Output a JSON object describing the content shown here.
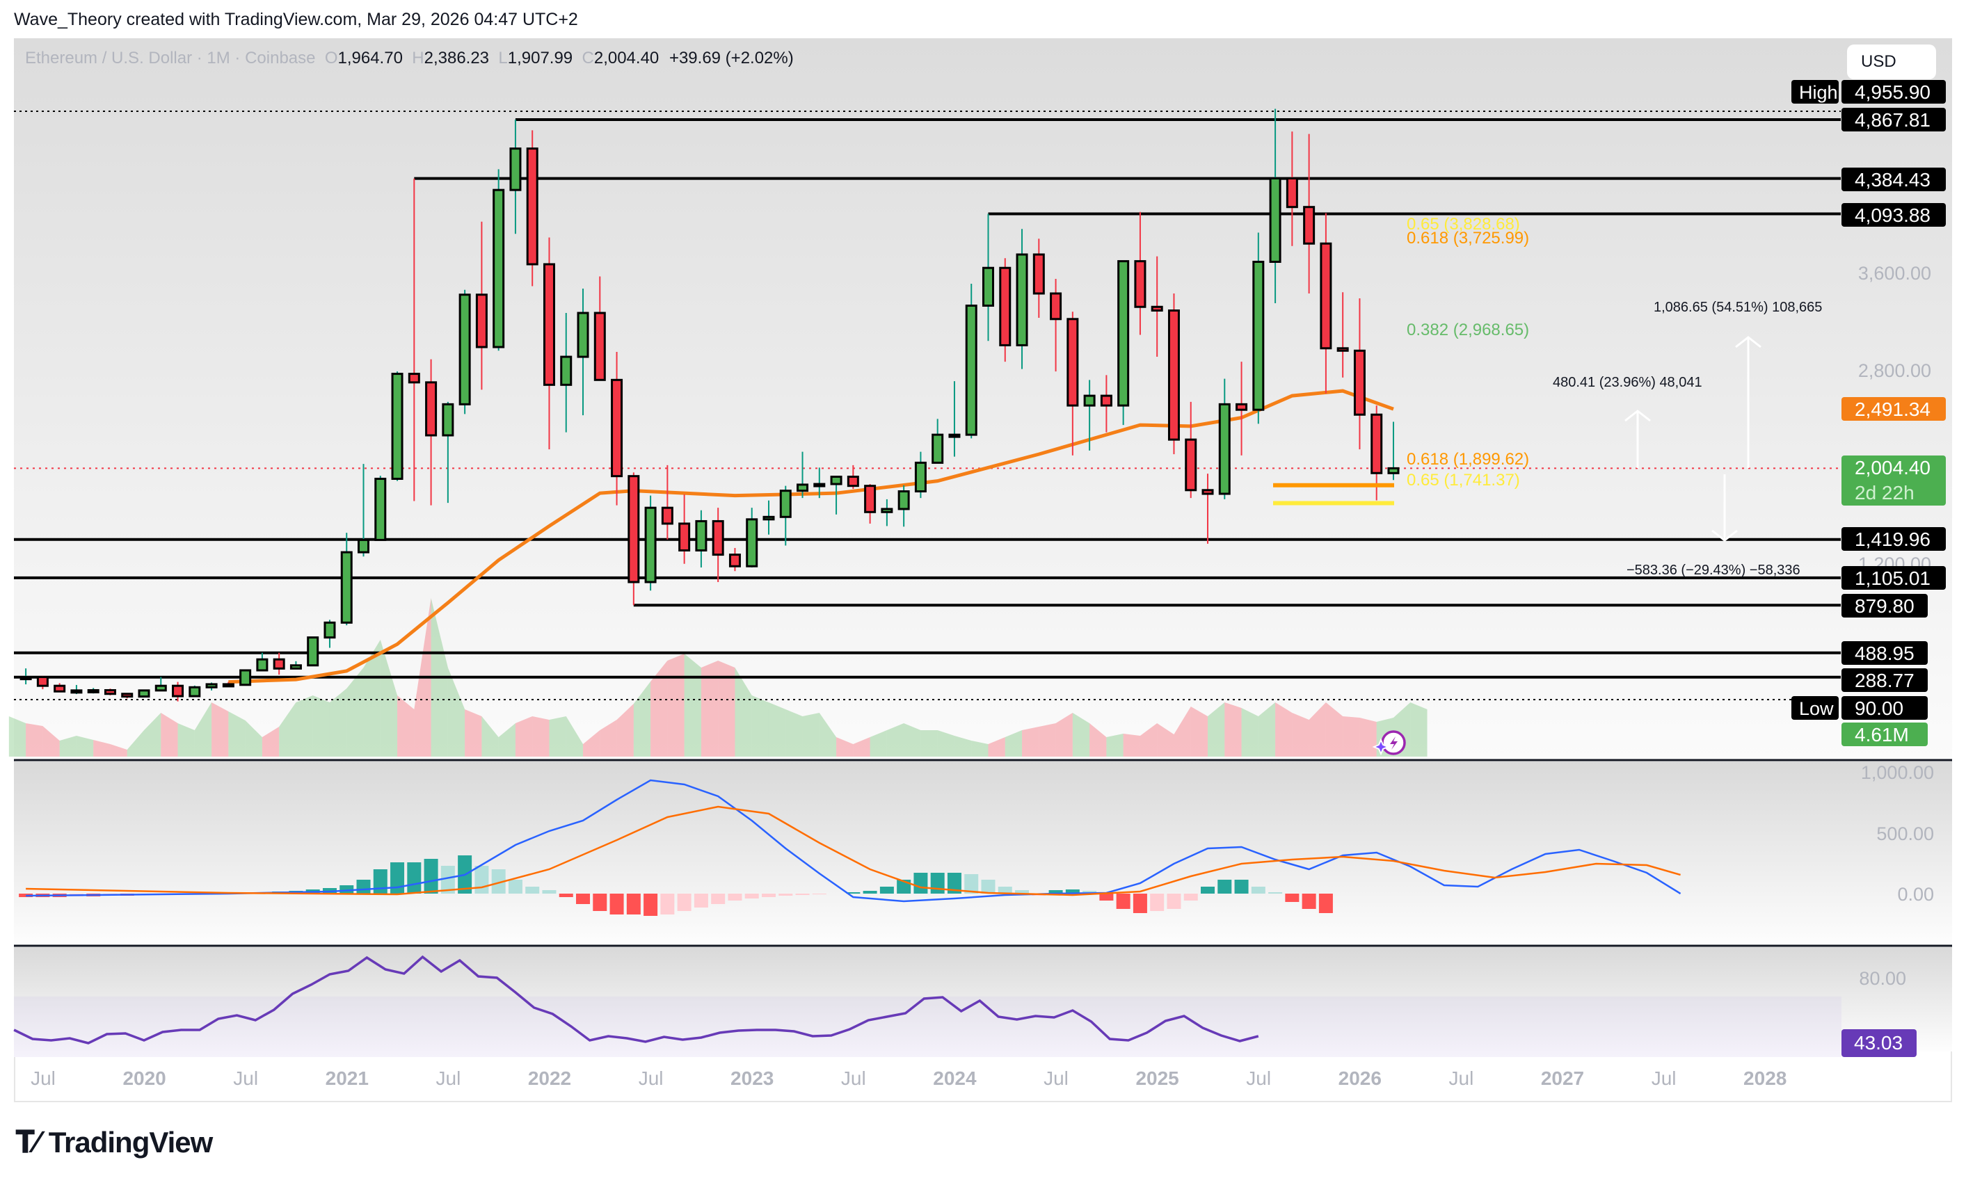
{
  "attribution": "Wave_Theory created with TradingView.com, Mar 29, 2026 04:47 UTC+2",
  "legend": {
    "symbol": "Ethereum / U.S. Dollar · 1M · Coinbase",
    "o_label": "O",
    "o": "1,964.70",
    "h_label": "H",
    "h": "2,386.23",
    "l_label": "L",
    "l": "1,907.99",
    "c_label": "C",
    "c": "2,004.40",
    "change": "+39.69 (+2.02%)"
  },
  "currency_button": "USD",
  "price_axis": {
    "ticks": [
      "3,600.00",
      "2,800.00",
      "1,200.00"
    ],
    "labels": [
      {
        "text": "4,955.90",
        "tag": "High",
        "kind": "extreme"
      },
      {
        "text": "4,867.81",
        "kind": "level"
      },
      {
        "text": "4,384.43",
        "kind": "level"
      },
      {
        "text": "4,093.88",
        "kind": "level"
      },
      {
        "text": "2,491.34",
        "kind": "ma",
        "color": "#f57f17"
      },
      {
        "text": "2,004.40",
        "sub": "2d 22h",
        "kind": "last",
        "color": "#4caf50"
      },
      {
        "text": "1,419.96",
        "kind": "level"
      },
      {
        "text": "1,105.01",
        "kind": "level"
      },
      {
        "text": "879.80",
        "kind": "level"
      },
      {
        "text": "488.95",
        "kind": "level"
      },
      {
        "text": "288.77",
        "kind": "level"
      },
      {
        "text": "90.00",
        "tag": "Low",
        "kind": "extreme"
      },
      {
        "text": "4.61M",
        "kind": "volume",
        "color": "#4caf50"
      }
    ]
  },
  "fib_labels": [
    {
      "text": "0.65 (3,828.68)",
      "color": "#ffeb3b"
    },
    {
      "text": "0.618 (3,725.99)",
      "color": "#ff9800"
    },
    {
      "text": "0.382 (2,968.65)",
      "color": "#66bb6a"
    },
    {
      "text": "0.618 (1,899.62)",
      "color": "#ff9800"
    },
    {
      "text": "0.65 (1,741.37)",
      "color": "#ffeb3b"
    }
  ],
  "measure_labels": [
    {
      "text": "1,086.65 (54.51%) 108,665"
    },
    {
      "text": "480.41 (23.96%) 48,041"
    },
    {
      "text": "−583.36 (−29.43%) −58,336"
    }
  ],
  "macd_axis": {
    "ticks": [
      "1,000.00",
      "500.00",
      "0.00"
    ]
  },
  "rsi_axis": {
    "ticks": [
      "80.00"
    ],
    "value": "43.03",
    "color": "#673ab7"
  },
  "time_axis": {
    "labels": [
      "Jul",
      "2020",
      "Jul",
      "2021",
      "Jul",
      "2022",
      "Jul",
      "2023",
      "Jul",
      "2024",
      "Jul",
      "2025",
      "Jul",
      "2026",
      "Jul",
      "2027",
      "Jul",
      "2028"
    ]
  },
  "branding": {
    "logo_text": "TradingView"
  },
  "colors": {
    "up": "#4caf50",
    "down": "#f23645",
    "ma": "#f57f17",
    "macd": "#2962ff",
    "signal": "#ff6d00",
    "rsi": "#673ab7"
  },
  "chart_data": {
    "type": "candlestick",
    "title": "Ethereum / U.S. Dollar · 1M · Coinbase",
    "xlabel": "",
    "ylabel": "USD",
    "ylim": [
      90,
      4955.9
    ],
    "horizontal_levels": [
      4867.81,
      4384.43,
      4093.88,
      1419.96,
      1105.01,
      879.8,
      488.95,
      288.77
    ],
    "all_time_high": 4955.9,
    "all_time_low": 90.0,
    "last_price": 2004.4,
    "moving_average_last": 2491.34,
    "fibonacci": [
      {
        "level": 0.65,
        "price": 3828.68
      },
      {
        "level": 0.618,
        "price": 3725.99
      },
      {
        "level": 0.382,
        "price": 2968.65
      },
      {
        "level": 0.618,
        "price": 1899.62
      },
      {
        "level": 0.65,
        "price": 1741.37
      }
    ],
    "projections": [
      {
        "change": 1086.65,
        "pct": 54.51,
        "ticks": 108665
      },
      {
        "change": 480.41,
        "pct": 23.96,
        "ticks": 48041
      },
      {
        "change": -583.36,
        "pct": -29.43,
        "ticks": -58336
      }
    ],
    "volume_last": "4.61M",
    "rsi_last": 43.03,
    "x_range": [
      "2019-05",
      "2026-03"
    ],
    "candles_ohlc_approx": [
      [
        "2019-06",
        290,
        361,
        230,
        290
      ],
      [
        "2019-07",
        290,
        300,
        190,
        218
      ],
      [
        "2019-08",
        218,
        240,
        170,
        172
      ],
      [
        "2019-09",
        172,
        225,
        150,
        180
      ],
      [
        "2019-10",
        180,
        200,
        155,
        182
      ],
      [
        "2019-11",
        182,
        195,
        140,
        152
      ],
      [
        "2019-12",
        152,
        155,
        115,
        130
      ],
      [
        "2020-01",
        130,
        185,
        128,
        180
      ],
      [
        "2020-02",
        180,
        290,
        180,
        218
      ],
      [
        "2020-03",
        218,
        250,
        90,
        133
      ],
      [
        "2020-04",
        133,
        220,
        130,
        206
      ],
      [
        "2020-05",
        206,
        245,
        180,
        231
      ],
      [
        "2020-06",
        231,
        250,
        215,
        226
      ],
      [
        "2020-07",
        226,
        350,
        225,
        345
      ],
      [
        "2020-08",
        345,
        490,
        340,
        435
      ],
      [
        "2020-09",
        435,
        490,
        310,
        360
      ],
      [
        "2020-10",
        360,
        420,
        360,
        386
      ],
      [
        "2020-11",
        386,
        620,
        380,
        615
      ],
      [
        "2020-12",
        615,
        760,
        530,
        737
      ],
      [
        "2021-01",
        737,
        1475,
        715,
        1315
      ],
      [
        "2021-02",
        1315,
        2040,
        1280,
        1416
      ],
      [
        "2021-03",
        1416,
        1943,
        1540,
        1918
      ],
      [
        "2021-04",
        1918,
        2800,
        1900,
        2780
      ],
      [
        "2021-05",
        2780,
        4384,
        1735,
        2710
      ],
      [
        "2021-06",
        2710,
        2900,
        1700,
        2275
      ],
      [
        "2021-07",
        2275,
        2550,
        1720,
        2530
      ],
      [
        "2021-08",
        2530,
        3470,
        2450,
        3430
      ],
      [
        "2021-09",
        3430,
        4030,
        2650,
        3000
      ],
      [
        "2021-10",
        3000,
        4460,
        2970,
        4290
      ],
      [
        "2021-11",
        4290,
        4868,
        3930,
        4630
      ],
      [
        "2021-12",
        4630,
        4780,
        3500,
        3680
      ],
      [
        "2022-01",
        3680,
        3900,
        2160,
        2690
      ],
      [
        "2022-02",
        2690,
        3280,
        2300,
        2920
      ],
      [
        "2022-03",
        2920,
        3480,
        2440,
        3280
      ],
      [
        "2022-04",
        3280,
        3580,
        2770,
        2730
      ],
      [
        "2022-05",
        2730,
        2960,
        1700,
        1940
      ],
      [
        "2022-06",
        1940,
        1970,
        880,
        1070
      ],
      [
        "2022-07",
        1070,
        1780,
        1000,
        1680
      ],
      [
        "2022-08",
        1680,
        2030,
        1420,
        1550
      ],
      [
        "2022-09",
        1550,
        1790,
        1220,
        1330
      ],
      [
        "2022-10",
        1330,
        1660,
        1190,
        1570
      ],
      [
        "2022-11",
        1570,
        1680,
        1070,
        1295
      ],
      [
        "2022-12",
        1295,
        1350,
        1160,
        1200
      ],
      [
        "2023-01",
        1200,
        1680,
        1190,
        1585
      ],
      [
        "2023-02",
        1585,
        1740,
        1460,
        1605
      ],
      [
        "2023-03",
        1605,
        1860,
        1370,
        1820
      ],
      [
        "2023-04",
        1820,
        2140,
        1760,
        1870
      ],
      [
        "2023-05",
        1870,
        2010,
        1760,
        1875
      ],
      [
        "2023-06",
        1875,
        1930,
        1625,
        1935
      ],
      [
        "2023-07",
        1935,
        2030,
        1835,
        1860
      ],
      [
        "2023-08",
        1860,
        1875,
        1550,
        1645
      ],
      [
        "2023-09",
        1645,
        1750,
        1530,
        1670
      ],
      [
        "2023-10",
        1670,
        1865,
        1525,
        1815
      ],
      [
        "2023-11",
        1815,
        2140,
        1760,
        2050
      ],
      [
        "2023-12",
        2050,
        2410,
        2120,
        2280
      ],
      [
        "2024-01",
        2280,
        2720,
        2100,
        2280
      ],
      [
        "2024-02",
        2280,
        3520,
        2250,
        3340
      ],
      [
        "2024-03",
        3340,
        4094,
        3050,
        3650
      ],
      [
        "2024-04",
        3650,
        3730,
        2880,
        3015
      ],
      [
        "2024-05",
        3015,
        3970,
        2820,
        3760
      ],
      [
        "2024-06",
        3760,
        3890,
        3240,
        3440
      ],
      [
        "2024-07",
        3440,
        3560,
        2800,
        3230
      ],
      [
        "2024-08",
        3230,
        3290,
        2110,
        2520
      ],
      [
        "2024-09",
        2520,
        2730,
        2150,
        2600
      ],
      [
        "2024-10",
        2600,
        2770,
        2300,
        2520
      ],
      [
        "2024-11",
        2520,
        3680,
        2360,
        3705
      ],
      [
        "2024-12",
        3705,
        4110,
        3100,
        3330
      ],
      [
        "2025-01",
        3330,
        3745,
        2920,
        3300
      ],
      [
        "2025-02",
        3300,
        3440,
        2120,
        2240
      ],
      [
        "2025-03",
        2240,
        2550,
        1760,
        1825
      ],
      [
        "2025-04",
        1825,
        1960,
        1385,
        1795
      ],
      [
        "2025-05",
        1795,
        2740,
        1750,
        2530
      ],
      [
        "2025-06",
        2530,
        2880,
        2110,
        2485
      ],
      [
        "2025-07",
        2485,
        3940,
        2370,
        3700
      ],
      [
        "2025-08",
        3700,
        4956,
        3360,
        4385
      ],
      [
        "2025-09",
        4385,
        4770,
        3830,
        4150
      ],
      [
        "2025-10",
        4150,
        4750,
        3440,
        3850
      ],
      [
        "2025-11",
        3850,
        4100,
        2620,
        2990
      ],
      [
        "2025-12",
        2990,
        3450,
        2750,
        2970
      ],
      [
        "2026-01",
        2970,
        3400,
        2160,
        2445
      ],
      [
        "2026-02",
        2445,
        2520,
        1741,
        1965
      ],
      [
        "2026-03",
        1964.7,
        2386.23,
        1907.99,
        2004.4
      ]
    ]
  }
}
